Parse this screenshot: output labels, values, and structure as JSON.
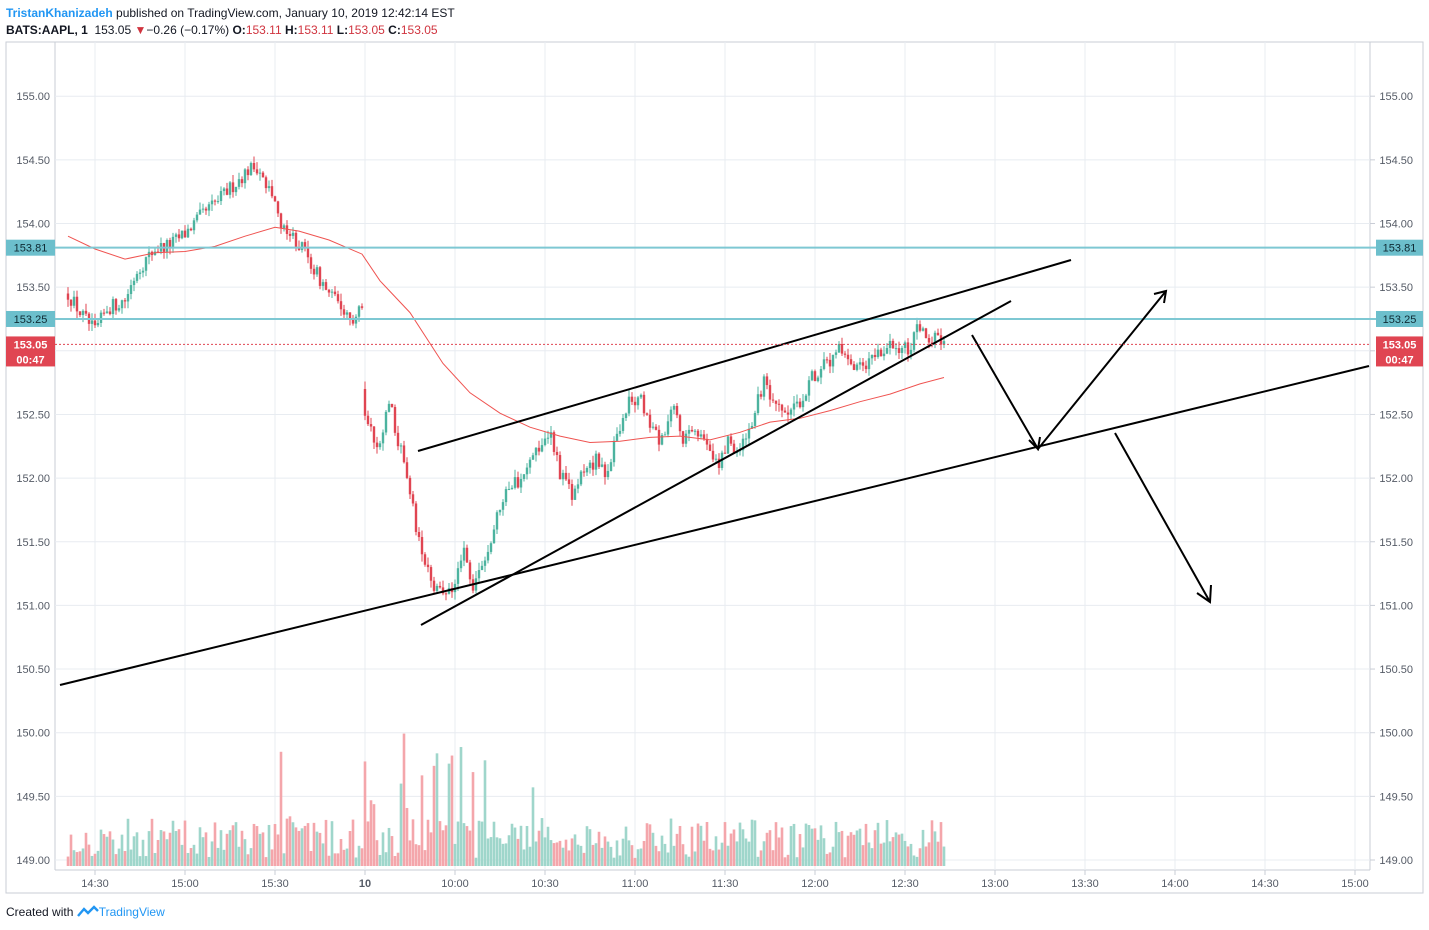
{
  "header": {
    "author": "TristanKhanizadeh",
    "published_text": " published on TradingView.com, January 10, 2019 12:42:14 EST",
    "symbol": "BATS:AAPL, 1",
    "last": "153.05",
    "change_arrow": "▼",
    "change": "−0.26 (−0.17%)",
    "open_label": "O:",
    "open": "153.11",
    "high_label": "H:",
    "high": "153.11",
    "low_label": "L:",
    "low": "153.05",
    "close_label": "C:",
    "close": "153.05"
  },
  "footer": {
    "created_with": "Created with",
    "brand": "TradingView"
  },
  "colors": {
    "up": "#4cb39f",
    "down": "#e04552",
    "vol_up": "#9fd6cb",
    "vol_down": "#f4a6ab",
    "ma": "#ef5350",
    "hline": "#7ec8d3",
    "hline_label_bg": "#6cbfcc",
    "price_tag": "#e04552",
    "grid": "#e8ecf1"
  },
  "chart_data": {
    "type": "candlestick",
    "symbol": "BATS:AAPL",
    "interval": "1",
    "ylim": [
      148.98,
      155.6
    ],
    "y_ticks": [
      "149.00",
      "149.50",
      "150.00",
      "150.50",
      "151.00",
      "151.50",
      "152.00",
      "152.50",
      "153.00",
      "153.50",
      "154.00",
      "154.50",
      "155.00"
    ],
    "x_ticks": [
      "14:30",
      "15:00",
      "15:30",
      "10",
      "10:00",
      "10:30",
      "11:00",
      "11:30",
      "12:00",
      "12:30",
      "13:00",
      "13:30",
      "14:00",
      "14:30",
      "15:00"
    ],
    "x_tick_minutes": [
      -330,
      -300,
      -270,
      -240,
      -210,
      -180,
      -150,
      -120,
      -90,
      -60,
      -30,
      0,
      30,
      60,
      90
    ],
    "horizontal_levels": [
      {
        "value": 153.81,
        "label": "153.81"
      },
      {
        "value": 153.25,
        "label": "153.25"
      }
    ],
    "last_price": {
      "value": 153.05,
      "label": "153.05",
      "countdown": "00:47"
    },
    "moving_average": [
      {
        "t": -339,
        "v": 153.9
      },
      {
        "t": -330,
        "v": 153.8
      },
      {
        "t": -320,
        "v": 153.72
      },
      {
        "t": -310,
        "v": 153.77
      },
      {
        "t": -300,
        "v": 153.78
      },
      {
        "t": -290,
        "v": 153.82
      },
      {
        "t": -280,
        "v": 153.9
      },
      {
        "t": -270,
        "v": 153.97
      },
      {
        "t": -262,
        "v": 153.94
      },
      {
        "t": -252,
        "v": 153.87
      },
      {
        "t": -241,
        "v": 153.76
      },
      {
        "t": -235,
        "v": 153.55
      },
      {
        "t": -225,
        "v": 153.3
      },
      {
        "t": -214,
        "v": 152.9
      },
      {
        "t": -205,
        "v": 152.67
      },
      {
        "t": -195,
        "v": 152.51
      },
      {
        "t": -185,
        "v": 152.4
      },
      {
        "t": -175,
        "v": 152.33
      },
      {
        "t": -165,
        "v": 152.28
      },
      {
        "t": -155,
        "v": 152.29
      },
      {
        "t": -145,
        "v": 152.32
      },
      {
        "t": -135,
        "v": 152.33
      },
      {
        "t": -125,
        "v": 152.3
      },
      {
        "t": -115,
        "v": 152.36
      },
      {
        "t": -105,
        "v": 152.44
      },
      {
        "t": -95,
        "v": 152.47
      },
      {
        "t": -85,
        "v": 152.53
      },
      {
        "t": -75,
        "v": 152.6
      },
      {
        "t": -65,
        "v": 152.66
      },
      {
        "t": -55,
        "v": 152.74
      },
      {
        "t": -47,
        "v": 152.79
      }
    ],
    "price_path": [
      {
        "t": -339,
        "v": 153.45
      },
      {
        "t": -335,
        "v": 153.3
      },
      {
        "t": -330,
        "v": 153.15
      },
      {
        "t": -326,
        "v": 153.33
      },
      {
        "t": -320,
        "v": 153.4
      },
      {
        "t": -316,
        "v": 153.63
      },
      {
        "t": -310,
        "v": 153.8
      },
      {
        "t": -305,
        "v": 153.83
      },
      {
        "t": -300,
        "v": 153.92
      },
      {
        "t": -295,
        "v": 154.05
      },
      {
        "t": -289,
        "v": 154.18
      },
      {
        "t": -284,
        "v": 154.3
      },
      {
        "t": -279,
        "v": 154.42
      },
      {
        "t": -276,
        "v": 154.45
      },
      {
        "t": -272,
        "v": 154.3
      },
      {
        "t": -268,
        "v": 154.0
      },
      {
        "t": -264,
        "v": 153.9
      },
      {
        "t": -260,
        "v": 153.77
      },
      {
        "t": -256,
        "v": 153.6
      },
      {
        "t": -252,
        "v": 153.45
      },
      {
        "t": -248,
        "v": 153.35
      },
      {
        "t": -244,
        "v": 153.25
      },
      {
        "t": -241,
        "v": 153.35
      },
      {
        "t": -240,
        "v": 152.5
      },
      {
        "t": -236,
        "v": 152.2
      },
      {
        "t": -232,
        "v": 152.63
      },
      {
        "t": -229,
        "v": 152.3
      },
      {
        "t": -226,
        "v": 152.0
      },
      {
        "t": -222,
        "v": 151.5
      },
      {
        "t": -218,
        "v": 151.2
      },
      {
        "t": -214,
        "v": 151.05
      },
      {
        "t": -210,
        "v": 151.2
      },
      {
        "t": -207,
        "v": 151.4
      },
      {
        "t": -204,
        "v": 151.15
      },
      {
        "t": -200,
        "v": 151.35
      },
      {
        "t": -196,
        "v": 151.7
      },
      {
        "t": -193,
        "v": 151.95
      },
      {
        "t": -189,
        "v": 151.97
      },
      {
        "t": -186,
        "v": 152.05
      },
      {
        "t": -182,
        "v": 152.25
      },
      {
        "t": -178,
        "v": 152.35
      },
      {
        "t": -175,
        "v": 152.05
      },
      {
        "t": -171,
        "v": 151.85
      },
      {
        "t": -167,
        "v": 152.05
      },
      {
        "t": -163,
        "v": 152.15
      },
      {
        "t": -160,
        "v": 152.0
      },
      {
        "t": -156,
        "v": 152.35
      },
      {
        "t": -152,
        "v": 152.6
      },
      {
        "t": -148,
        "v": 152.6
      },
      {
        "t": -145,
        "v": 152.4
      },
      {
        "t": -141,
        "v": 152.28
      },
      {
        "t": -137,
        "v": 152.55
      },
      {
        "t": -134,
        "v": 152.3
      },
      {
        "t": -130,
        "v": 152.35
      },
      {
        "t": -126,
        "v": 152.3
      },
      {
        "t": -122,
        "v": 152.1
      },
      {
        "t": -119,
        "v": 152.3
      },
      {
        "t": -115,
        "v": 152.2
      },
      {
        "t": -111,
        "v": 152.45
      },
      {
        "t": -107,
        "v": 152.75
      },
      {
        "t": -104,
        "v": 152.55
      },
      {
        "t": -100,
        "v": 152.5
      },
      {
        "t": -96,
        "v": 152.55
      },
      {
        "t": -92,
        "v": 152.75
      },
      {
        "t": -89,
        "v": 152.85
      },
      {
        "t": -85,
        "v": 152.9
      },
      {
        "t": -82,
        "v": 153.0
      },
      {
        "t": -78,
        "v": 152.85
      },
      {
        "t": -74,
        "v": 152.85
      },
      {
        "t": -70,
        "v": 152.95
      },
      {
        "t": -67,
        "v": 153.0
      },
      {
        "t": -63,
        "v": 153.05
      },
      {
        "t": -59,
        "v": 153.0
      },
      {
        "t": -56,
        "v": 153.15
      },
      {
        "t": -52,
        "v": 153.1
      },
      {
        "t": -49,
        "v": 153.12
      },
      {
        "t": -47,
        "v": 153.05
      }
    ]
  }
}
